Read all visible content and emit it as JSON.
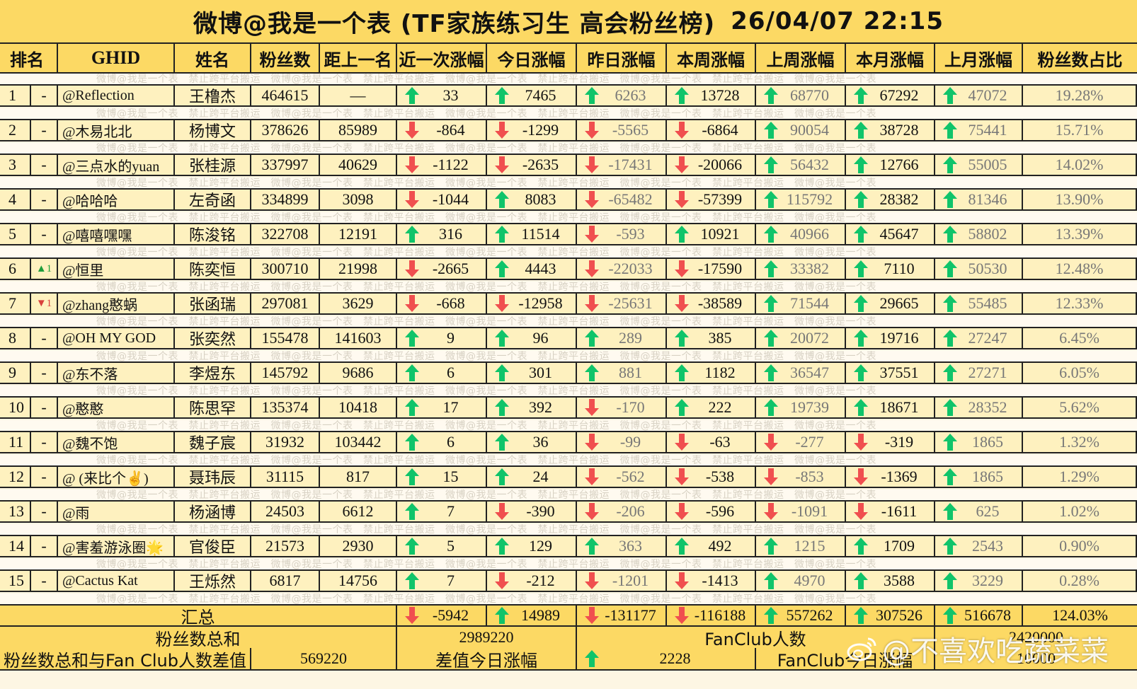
{
  "title": {
    "main": "微博@我是一个表 (TF家族练习生 高会粉丝榜)",
    "datetime": "26/04/07 22:15"
  },
  "watermark_text": "微博@我是一个表　禁止跨平台搬运　微博@我是一个表　禁止跨平台搬运　微博@我是一个表　禁止跨平台搬运　微博@我是一个表　禁止跨平台搬运　微博@我是一个表",
  "columns": [
    "排名",
    "GHID",
    "姓名",
    "粉丝数",
    "距上一名",
    "近一次涨幅",
    "今日涨幅",
    "昨日涨幅",
    "本周涨幅",
    "上周涨幅",
    "本月涨幅",
    "上月涨幅",
    "粉丝数占比"
  ],
  "colors": {
    "header_bg": "#fcd964",
    "row_bg": "#fef1bf",
    "up": "#10c46a",
    "down": "#f04f4f"
  },
  "rows": [
    {
      "rank": "1",
      "change": "-",
      "change_dir": "none",
      "ghid": "@Reflection",
      "name": "王橹杰",
      "fans": "464615",
      "gap": "—",
      "recent": "33",
      "today": "7465",
      "yesterday": "6263",
      "this_week": "13728",
      "last_week": "68770",
      "this_month": "67292",
      "last_month": "47072",
      "share": "19.28%"
    },
    {
      "rank": "2",
      "change": "-",
      "change_dir": "none",
      "ghid": "@木易北北",
      "name": "杨博文",
      "fans": "378626",
      "gap": "85989",
      "recent": "-864",
      "today": "-1299",
      "yesterday": "-5565",
      "this_week": "-6864",
      "last_week": "90054",
      "this_month": "38728",
      "last_month": "75441",
      "share": "15.71%"
    },
    {
      "rank": "3",
      "change": "-",
      "change_dir": "none",
      "ghid": "@三点水的yuan",
      "name": "张桂源",
      "fans": "337997",
      "gap": "40629",
      "recent": "-1122",
      "today": "-2635",
      "yesterday": "-17431",
      "this_week": "-20066",
      "last_week": "56432",
      "this_month": "12766",
      "last_month": "55005",
      "share": "14.02%"
    },
    {
      "rank": "4",
      "change": "-",
      "change_dir": "none",
      "ghid": "@哈哈哈",
      "name": "左奇函",
      "fans": "334899",
      "gap": "3098",
      "recent": "-1044",
      "today": "8083",
      "yesterday": "-65482",
      "this_week": "-57399",
      "last_week": "115792",
      "this_month": "28382",
      "last_month": "81346",
      "share": "13.90%"
    },
    {
      "rank": "5",
      "change": "-",
      "change_dir": "none",
      "ghid": "@嘻嘻嘿嘿",
      "name": "陈浚铭",
      "fans": "322708",
      "gap": "12191",
      "recent": "316",
      "today": "11514",
      "yesterday": "-593",
      "this_week": "10921",
      "last_week": "40966",
      "this_month": "45647",
      "last_month": "58802",
      "share": "13.39%"
    },
    {
      "rank": "6",
      "change": "▲1",
      "change_dir": "up",
      "ghid": "@恒里",
      "name": "陈奕恒",
      "fans": "300710",
      "gap": "21998",
      "recent": "-2665",
      "today": "4443",
      "yesterday": "-22033",
      "this_week": "-17590",
      "last_week": "33382",
      "this_month": "7110",
      "last_month": "50530",
      "share": "12.48%"
    },
    {
      "rank": "7",
      "change": "▼1",
      "change_dir": "down",
      "ghid": "@zhang憨蜗",
      "name": "张函瑞",
      "fans": "297081",
      "gap": "3629",
      "recent": "-668",
      "today": "-12958",
      "yesterday": "-25631",
      "this_week": "-38589",
      "last_week": "71544",
      "this_month": "29665",
      "last_month": "55485",
      "share": "12.33%"
    },
    {
      "rank": "8",
      "change": "-",
      "change_dir": "none",
      "ghid": "@OH MY GOD",
      "name": "张奕然",
      "fans": "155478",
      "gap": "141603",
      "recent": "9",
      "today": "96",
      "yesterday": "289",
      "this_week": "385",
      "last_week": "20072",
      "this_month": "19716",
      "last_month": "27247",
      "share": "6.45%"
    },
    {
      "rank": "9",
      "change": "-",
      "change_dir": "none",
      "ghid": "@东不落",
      "name": "李煜东",
      "fans": "145792",
      "gap": "9686",
      "recent": "6",
      "today": "301",
      "yesterday": "881",
      "this_week": "1182",
      "last_week": "36547",
      "this_month": "37551",
      "last_month": "27271",
      "share": "6.05%"
    },
    {
      "rank": "10",
      "change": "-",
      "change_dir": "none",
      "ghid": "@憨憨",
      "name": "陈思罕",
      "fans": "135374",
      "gap": "10418",
      "recent": "17",
      "today": "392",
      "yesterday": "-170",
      "this_week": "222",
      "last_week": "19739",
      "this_month": "18671",
      "last_month": "28352",
      "share": "5.62%"
    },
    {
      "rank": "11",
      "change": "-",
      "change_dir": "none",
      "ghid": "@魏不饱",
      "name": "魏子宸",
      "fans": "31932",
      "gap": "103442",
      "recent": "6",
      "today": "36",
      "yesterday": "-99",
      "this_week": "-63",
      "last_week": "-277",
      "this_month": "-319",
      "last_month": "1865",
      "share": "1.32%"
    },
    {
      "rank": "12",
      "change": "-",
      "change_dir": "none",
      "ghid": "@ (来比个✌️)",
      "name": "聂玮辰",
      "fans": "31115",
      "gap": "817",
      "recent": "15",
      "today": "24",
      "yesterday": "-562",
      "this_week": "-538",
      "last_week": "-853",
      "this_month": "-1369",
      "last_month": "1865",
      "share": "1.29%"
    },
    {
      "rank": "13",
      "change": "-",
      "change_dir": "none",
      "ghid": "@雨",
      "name": "杨涵博",
      "fans": "24503",
      "gap": "6612",
      "recent": "7",
      "today": "-390",
      "yesterday": "-206",
      "this_week": "-596",
      "last_week": "-1091",
      "this_month": "-1611",
      "last_month": "625",
      "share": "1.02%"
    },
    {
      "rank": "14",
      "change": "-",
      "change_dir": "none",
      "ghid": "@害羞游泳圈🌟",
      "name": "官俊臣",
      "fans": "21573",
      "gap": "2930",
      "recent": "5",
      "today": "129",
      "yesterday": "363",
      "this_week": "492",
      "last_week": "1215",
      "this_month": "1709",
      "last_month": "2543",
      "share": "0.90%"
    },
    {
      "rank": "15",
      "change": "-",
      "change_dir": "none",
      "ghid": "@Cactus Kat",
      "name": "王烁然",
      "fans": "6817",
      "gap": "14756",
      "recent": "7",
      "today": "-212",
      "yesterday": "-1201",
      "this_week": "-1413",
      "last_week": "4970",
      "this_month": "3588",
      "last_month": "3229",
      "share": "0.28%"
    }
  ],
  "summary": {
    "label": "汇总",
    "recent": "-5942",
    "today": "14989",
    "yesterday": "-131177",
    "this_week": "-116188",
    "last_week": "557262",
    "this_month": "307526",
    "last_month": "516678",
    "share": "124.03%"
  },
  "totals": {
    "fans_total_label": "粉丝数总和",
    "fans_total_value": "2989220",
    "fanclub_label": "FanClub人数",
    "fanclub_value": "2420000",
    "diff_label": "粉丝数总和与Fan Club人数差值",
    "diff_value": "569220",
    "diff_today_label": "差值今日涨幅",
    "diff_today_value": "2228",
    "fanclub_today_label": "FanClub今日涨幅",
    "fanclub_today_value": "10000"
  },
  "overlay_watermark": "@不喜欢吃蔬菜菜"
}
